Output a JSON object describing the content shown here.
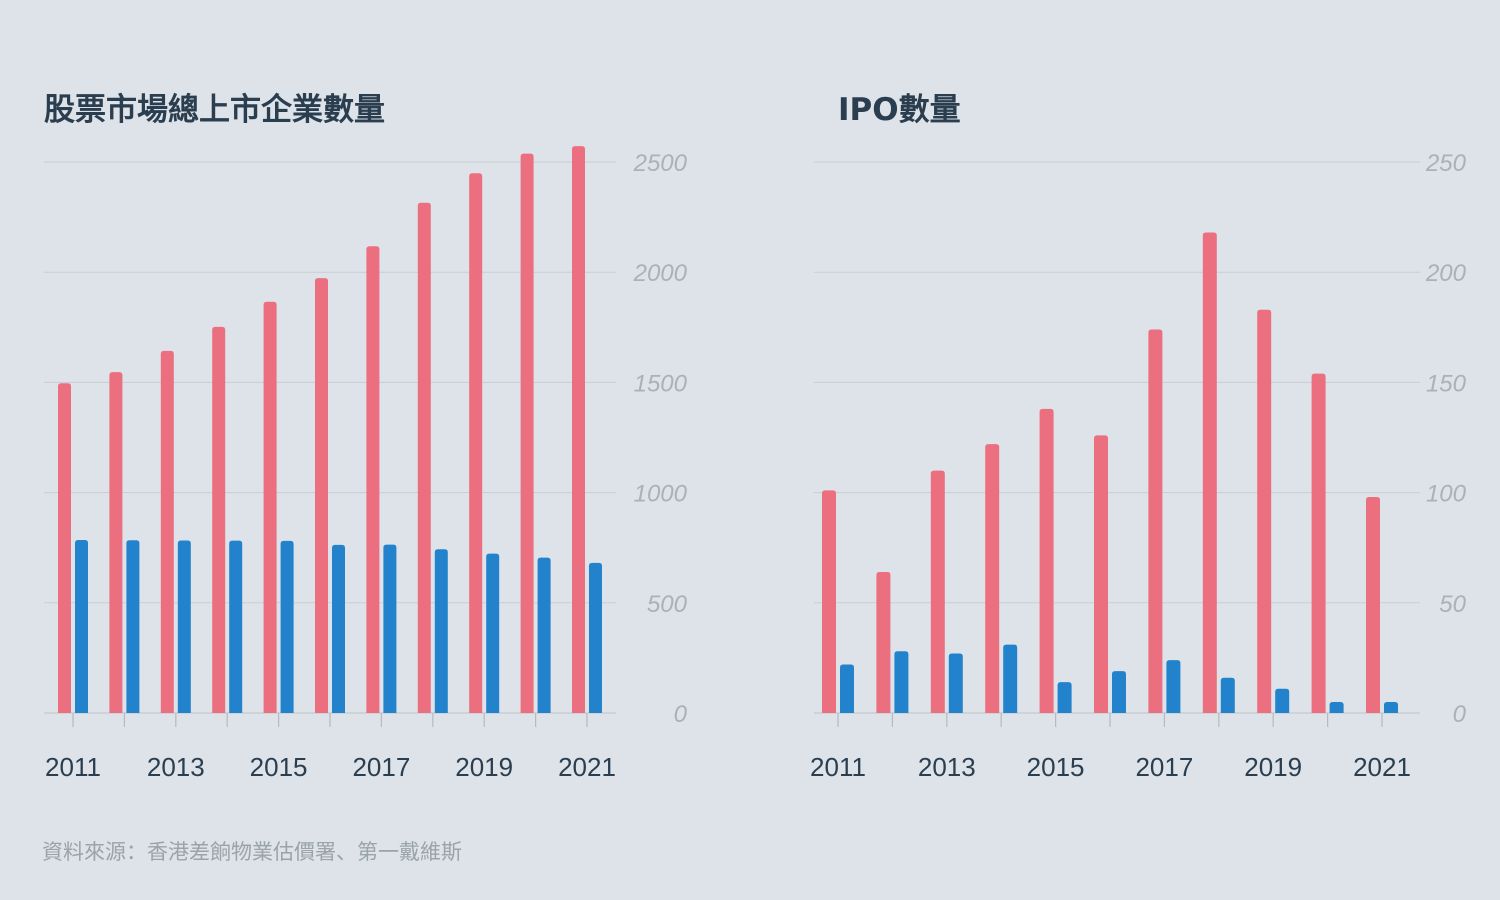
{
  "colors": {
    "background": "#dde3e8",
    "series_a": "#ec6f80",
    "series_b": "#2283cc",
    "grid": "#c9ced3",
    "axis_text": "#aab1b8",
    "tick_text": "#2b3e50",
    "title": "#2b3e50"
  },
  "source": "資料來源：香港差餉物業估價署、第一戴維斯",
  "chart_data": [
    {
      "type": "bar",
      "title": "股票市場總上市企業數量",
      "x": [
        2011,
        2012,
        2013,
        2014,
        2015,
        2016,
        2017,
        2018,
        2019,
        2020,
        2021
      ],
      "x_tick_labels": [
        "2011",
        "2013",
        "2015",
        "2017",
        "2019",
        "2021"
      ],
      "y_tick_labels": [
        "0",
        "500",
        "1000",
        "1500",
        "2000",
        "2500"
      ],
      "ylim": [
        0,
        2600
      ],
      "y_axis_position": "right",
      "grid": true,
      "series": [
        {
          "values": [
            1496,
            1547,
            1643,
            1752,
            1866,
            1973,
            2118,
            2315,
            2449,
            2538,
            2572
          ]
        },
        {
          "values": [
            785,
            784,
            783,
            782,
            781,
            763,
            764,
            743,
            723,
            705,
            681
          ]
        }
      ]
    },
    {
      "type": "bar",
      "title": "IPO數量",
      "x": [
        2011,
        2012,
        2013,
        2014,
        2015,
        2016,
        2017,
        2018,
        2019,
        2020,
        2021
      ],
      "x_tick_labels": [
        "2011",
        "2013",
        "2015",
        "2017",
        "2019",
        "2021"
      ],
      "y_tick_labels": [
        "0",
        "50",
        "100",
        "150",
        "200",
        "250"
      ],
      "ylim": [
        0,
        260
      ],
      "y_axis_position": "right",
      "grid": true,
      "series": [
        {
          "values": [
            101,
            64,
            110,
            122,
            138,
            126,
            174,
            218,
            183,
            154,
            98
          ]
        },
        {
          "values": [
            22,
            28,
            27,
            31,
            14,
            19,
            24,
            16,
            11,
            5,
            5
          ]
        }
      ]
    }
  ]
}
